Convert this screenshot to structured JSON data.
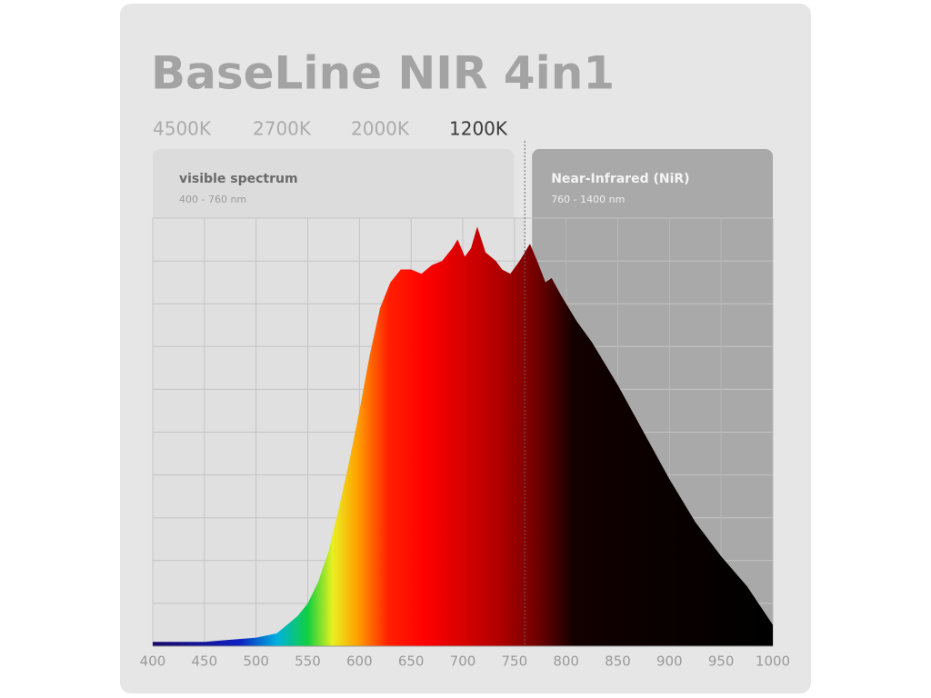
{
  "header": {
    "title": "BaseLine NIR 4in1",
    "tabs": [
      "4500K",
      "2700K",
      "2000K",
      "1200K"
    ],
    "active_tab": 3
  },
  "regions": {
    "visible": {
      "label": "visible spectrum",
      "range": "400 - 760 nm"
    },
    "nir": {
      "label": "Near-Infrared (NiR)",
      "range": "760 - 1400 nm"
    },
    "boundary": 760
  },
  "chart_data": {
    "type": "area",
    "x": [
      400,
      450,
      500,
      520,
      540,
      550,
      560,
      570,
      580,
      590,
      600,
      610,
      620,
      630,
      640,
      650,
      660,
      670,
      680,
      690,
      695,
      702,
      708,
      714,
      722,
      732,
      738,
      746,
      755,
      765,
      772,
      780,
      786,
      795,
      810,
      825,
      850,
      875,
      900,
      925,
      950,
      975,
      1000
    ],
    "values": [
      1,
      1,
      2,
      3,
      7,
      10,
      15,
      22,
      32,
      43,
      55,
      68,
      79,
      85,
      88,
      88,
      87,
      89,
      90,
      93,
      95,
      91,
      93,
      98,
      92,
      90,
      88,
      87,
      90,
      94,
      90,
      85,
      86,
      82,
      76,
      71,
      61,
      50,
      39,
      29,
      21,
      14,
      5
    ],
    "xlim": [
      400,
      1000
    ],
    "xticks": [
      400,
      450,
      500,
      550,
      600,
      650,
      700,
      750,
      800,
      850,
      900,
      950,
      1000
    ],
    "ylim": [
      0,
      100
    ],
    "ygrid": [
      0,
      10,
      20,
      30,
      40,
      50,
      60,
      70,
      80,
      90,
      100
    ],
    "grid": true
  }
}
